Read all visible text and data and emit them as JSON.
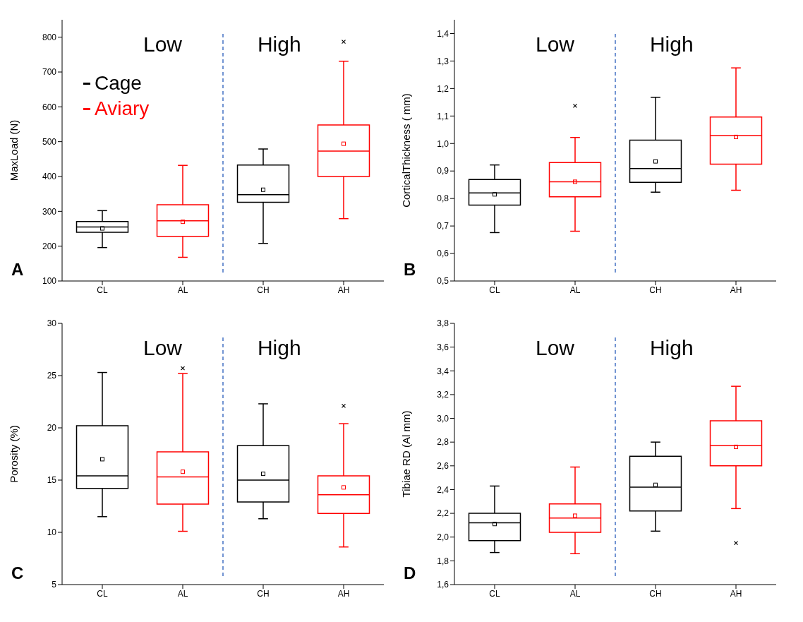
{
  "chart_data": [
    {
      "type": "box",
      "categories": [
        "CL",
        "AL",
        "CH",
        "AH"
      ],
      "ylabel": "MaxLoad (N)",
      "ylim": [
        100,
        850
      ],
      "yticks": [
        100,
        200,
        300,
        400,
        500,
        600,
        700,
        800
      ],
      "legend": "top left",
      "annotations": [
        "Low",
        "High",
        "A"
      ],
      "series": [
        {
          "name": "Cage",
          "color": "#000000",
          "boxes": [
            {
              "low": 196,
              "q1": 240,
              "median": 255,
              "q3": 271,
              "high": 302,
              "mean": 251
            },
            null,
            {
              "low": 208,
              "q1": 326,
              "median": 348,
              "q3": 433,
              "high": 479,
              "mean": 362
            },
            null
          ]
        },
        {
          "name": "Aviary",
          "color": "#ff0000",
          "boxes": [
            null,
            {
              "low": 168,
              "q1": 228,
              "median": 273,
              "q3": 319,
              "high": 432,
              "mean": 270
            },
            null,
            {
              "low": 279,
              "q1": 400,
              "median": 473,
              "q3": 548,
              "high": 731,
              "mean": 494,
              "outliers": [
                787
              ]
            }
          ]
        }
      ]
    },
    {
      "type": "box",
      "categories": [
        "CL",
        "AL",
        "CH",
        "AH"
      ],
      "ylabel": "CorticalThickness ( mm)",
      "ylim": [
        0.5,
        1.45
      ],
      "yticks": [
        {
          "value": 0.5,
          "label": "0,5"
        },
        {
          "value": 0.6,
          "label": "0,6"
        },
        {
          "value": 0.7,
          "label": "0,7"
        },
        {
          "value": 0.8,
          "label": "0,8"
        },
        {
          "value": 0.9,
          "label": "0,9"
        },
        {
          "value": 1.0,
          "label": "1,0"
        },
        {
          "value": 1.1,
          "label": "1,1"
        },
        {
          "value": 1.2,
          "label": "1,2"
        },
        {
          "value": 1.3,
          "label": "1,3"
        },
        {
          "value": 1.4,
          "label": "1,4"
        }
      ],
      "annotations": [
        "Low",
        "High",
        "B"
      ],
      "series": [
        {
          "color": "#000000",
          "boxes": [
            {
              "low": 0.676,
              "q1": 0.776,
              "median": 0.82,
              "q3": 0.869,
              "high": 0.922,
              "mean": 0.815
            },
            null,
            {
              "low": 0.823,
              "q1": 0.859,
              "median": 0.909,
              "q3": 1.012,
              "high": 1.168,
              "mean": 0.935
            },
            null
          ]
        },
        {
          "color": "#ff0000",
          "boxes": [
            null,
            {
              "low": 0.681,
              "q1": 0.806,
              "median": 0.861,
              "q3": 0.931,
              "high": 1.022,
              "mean": 0.861,
              "outliers": [
                1.137
              ]
            },
            null,
            {
              "low": 0.83,
              "q1": 0.925,
              "median": 1.029,
              "q3": 1.096,
              "high": 1.275,
              "mean": 1.024
            }
          ]
        }
      ]
    },
    {
      "type": "box",
      "categories": [
        "CL",
        "AL",
        "CH",
        "AH"
      ],
      "ylabel": "Porosity (%)",
      "ylim": [
        5,
        30
      ],
      "yticks": [
        5,
        10,
        15,
        20,
        25,
        30
      ],
      "annotations": [
        "Low",
        "High",
        "C"
      ],
      "series": [
        {
          "color": "#000000",
          "boxes": [
            {
              "low": 11.5,
              "q1": 14.2,
              "median": 15.4,
              "q3": 20.2,
              "high": 25.3,
              "mean": 17.0
            },
            null,
            {
              "low": 11.3,
              "q1": 12.9,
              "median": 15.0,
              "q3": 18.3,
              "high": 22.3,
              "mean": 15.6
            },
            null
          ]
        },
        {
          "color": "#ff0000",
          "boxes": [
            null,
            {
              "low": 10.1,
              "q1": 12.7,
              "median": 15.3,
              "q3": 17.7,
              "high": 25.2,
              "mean": 15.8,
              "outliers": [
                25.7
              ]
            },
            null,
            {
              "low": 8.6,
              "q1": 11.8,
              "median": 13.6,
              "q3": 15.4,
              "high": 20.4,
              "mean": 14.3,
              "outliers": [
                22.1
              ]
            }
          ]
        }
      ]
    },
    {
      "type": "box",
      "categories": [
        "CL",
        "AL",
        "CH",
        "AH"
      ],
      "ylabel": "Tibiae RD (Al mm)",
      "ylim": [
        1.6,
        3.8
      ],
      "yticks": [
        {
          "value": 1.6,
          "label": "1,6"
        },
        {
          "value": 1.8,
          "label": "1,8"
        },
        {
          "value": 2.0,
          "label": "2,0"
        },
        {
          "value": 2.2,
          "label": "2,2"
        },
        {
          "value": 2.4,
          "label": "2,4"
        },
        {
          "value": 2.6,
          "label": "2,6"
        },
        {
          "value": 2.8,
          "label": "2,8"
        },
        {
          "value": 3.0,
          "label": "3,0"
        },
        {
          "value": 3.2,
          "label": "3,2"
        },
        {
          "value": 3.4,
          "label": "3,4"
        },
        {
          "value": 3.6,
          "label": "3,6"
        },
        {
          "value": 3.8,
          "label": "3,8"
        }
      ],
      "annotations": [
        "Low",
        "High",
        "D"
      ],
      "series": [
        {
          "color": "#000000",
          "boxes": [
            {
              "low": 1.87,
              "q1": 1.97,
              "median": 2.12,
              "q3": 2.2,
              "high": 2.43,
              "mean": 2.11
            },
            null,
            {
              "low": 2.05,
              "q1": 2.22,
              "median": 2.42,
              "q3": 2.68,
              "high": 2.8,
              "mean": 2.44
            },
            null
          ]
        },
        {
          "color": "#ff0000",
          "boxes": [
            null,
            {
              "low": 1.86,
              "q1": 2.04,
              "median": 2.16,
              "q3": 2.28,
              "high": 2.59,
              "mean": 2.18
            },
            null,
            {
              "low": 2.24,
              "q1": 2.6,
              "median": 2.77,
              "q3": 2.98,
              "high": 3.27,
              "mean": 2.76,
              "outliers": [
                1.95
              ]
            }
          ]
        }
      ]
    }
  ]
}
